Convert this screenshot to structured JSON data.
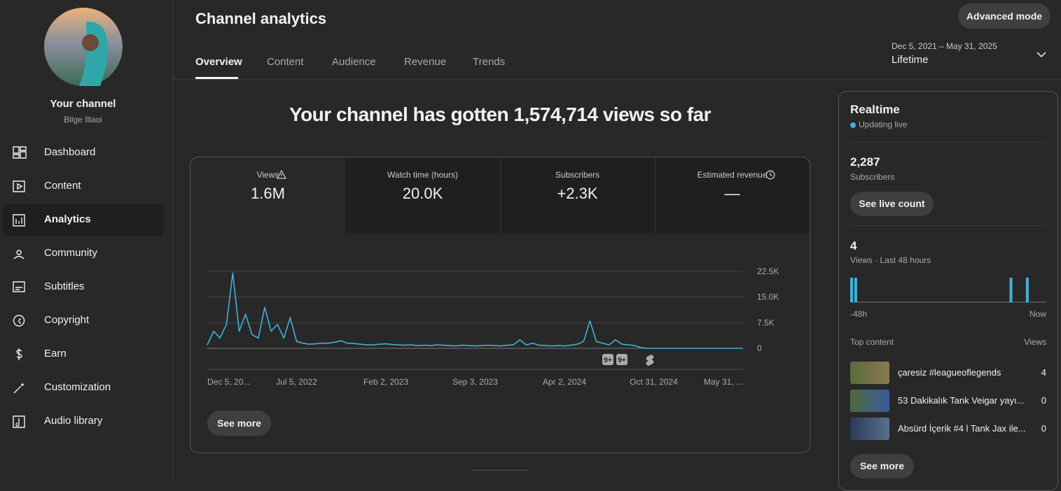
{
  "sidebar": {
    "channel_title": "Your channel",
    "channel_name": "Bilge Illaoi",
    "nav": [
      "Dashboard",
      "Content",
      "Analytics",
      "Community",
      "Subtitles",
      "Copyright",
      "Earn",
      "Customization",
      "Audio library"
    ]
  },
  "header": {
    "title": "Channel analytics",
    "tabs": [
      "Overview",
      "Content",
      "Audience",
      "Revenue",
      "Trends"
    ],
    "advanced_mode": "Advanced mode",
    "date_range": "Dec 5, 2021 – May 31, 2025",
    "period": "Lifetime"
  },
  "headline": "Your channel has gotten 1,574,714 views so far",
  "metrics": [
    {
      "label": "Views",
      "value": "1.6M"
    },
    {
      "label": "Watch time (hours)",
      "value": "20.0K"
    },
    {
      "label": "Subscribers",
      "value": "+2.3K"
    },
    {
      "label": "Estimated revenue",
      "value": "—"
    }
  ],
  "chart_markers": [
    "9+",
    "9+"
  ],
  "see_more": "See more",
  "chart_data": [
    {
      "type": "line",
      "color": "#3fb1d8",
      "categories": [
        "Dec 5, 20...",
        null,
        null,
        null,
        null,
        null,
        null,
        null,
        null,
        null,
        null,
        null,
        null,
        null,
        "Jul 5, 2022",
        null,
        null,
        null,
        null,
        null,
        null,
        null,
        null,
        null,
        null,
        null,
        null,
        null,
        "Feb 2, 2023",
        null,
        null,
        null,
        null,
        null,
        null,
        null,
        null,
        null,
        null,
        null,
        null,
        null,
        "Sep 3, 2023",
        null,
        null,
        null,
        null,
        null,
        null,
        null,
        null,
        null,
        null,
        null,
        null,
        null,
        "Apr 2, 2024",
        null,
        null,
        null,
        null,
        null,
        null,
        null,
        null,
        null,
        null,
        null,
        null,
        null,
        "Oct 31, 2024",
        null,
        null,
        null,
        null,
        null,
        null,
        null,
        null,
        null,
        null,
        null,
        null,
        null,
        "May 31, ..."
      ],
      "values": [
        1000,
        5000,
        3000,
        7000,
        22000,
        5000,
        10000,
        4000,
        3000,
        12000,
        5000,
        7000,
        3000,
        9000,
        2000,
        1500,
        1200,
        1300,
        1500,
        1500,
        1800,
        2200,
        1500,
        1400,
        1200,
        1000,
        1000,
        1200,
        1300,
        1100,
        1000,
        900,
        1000,
        800,
        900,
        800,
        1000,
        900,
        800,
        700,
        900,
        800,
        700,
        800,
        900,
        800,
        700,
        900,
        1000,
        2500,
        1000,
        1500,
        900,
        800,
        700,
        800,
        700,
        900,
        1200,
        2000,
        8000,
        2000,
        1500,
        1000,
        2500,
        1200,
        1000,
        800,
        200,
        0,
        0,
        0,
        0,
        0,
        0,
        0,
        0,
        0,
        0,
        0,
        0,
        0,
        0,
        0,
        0
      ],
      "ylim": [
        0,
        22500
      ],
      "yticks": [
        0,
        {
          "value": 7500,
          "label": "7.5K"
        },
        {
          "value": 15000,
          "label": "15.0K"
        },
        {
          "value": 22500,
          "label": "22.5K"
        }
      ],
      "grid": true
    },
    {
      "type": "bar",
      "color": "#3fb1d8",
      "ylim": [
        0,
        1
      ],
      "values": [
        1,
        1,
        0,
        0,
        0,
        0,
        0,
        0,
        0,
        0,
        0,
        0,
        0,
        0,
        0,
        0,
        0,
        0,
        0,
        0,
        0,
        0,
        0,
        0,
        0,
        0,
        0,
        0,
        0,
        0,
        0,
        0,
        0,
        0,
        0,
        0,
        0,
        0,
        0,
        1,
        0,
        0,
        0,
        1,
        0,
        0,
        0,
        0
      ],
      "start_label": "-48h",
      "end_label": "Now"
    }
  ],
  "realtime": {
    "title": "Realtime",
    "status": "Updating live",
    "subscribers": {
      "value": "2,287",
      "label": "Subscribers"
    },
    "live_count_button": "See live count",
    "views": {
      "value": "4",
      "label": "Views · Last 48 hours"
    },
    "top_content": {
      "title": "Top content",
      "column": "Views",
      "items": [
        {
          "title": "çaresiz #leagueoflegends",
          "views": 4
        },
        {
          "title": "53 Dakikalık Tank Veigar yayı...",
          "views": 0
        },
        {
          "title": "Absürd İçerik #4 l Tank Jax ile...",
          "views": 0
        }
      ]
    },
    "see_more": "See more"
  }
}
